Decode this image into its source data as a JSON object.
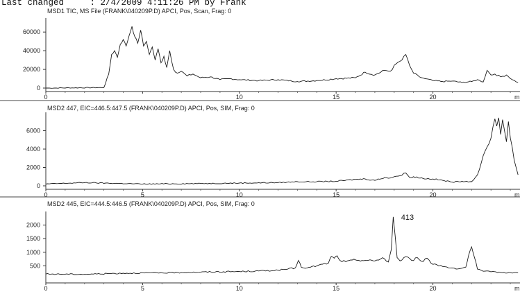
{
  "header": {
    "label": "Last changed",
    "value": ": 2/4/2009 4:11:26 PM by Frank"
  },
  "chart_data": [
    {
      "type": "line",
      "title": "MSD1 TIC, MS File (FRANK\\040209P.D)    APCI, Pos, Scan, Frag: 0",
      "xlim": [
        0,
        24.5
      ],
      "ylim": [
        0,
        75000
      ],
      "x_ticks": [
        0,
        5,
        10,
        15,
        20
      ],
      "x_tick_labels": [
        "0",
        "",
        "10",
        "15",
        "20"
      ],
      "y_ticks": [
        0,
        20000,
        40000,
        60000
      ],
      "x_unit_fragment": "m",
      "grid": false,
      "series": [
        {
          "x": [
            0,
            3.0,
            3.25,
            3.4,
            3.55,
            3.7,
            3.85,
            4.0,
            4.15,
            4.3,
            4.45,
            4.6,
            4.75,
            4.9,
            5.05,
            5.2,
            5.35,
            5.5,
            5.65,
            5.8,
            5.95,
            6.1,
            6.25,
            6.4,
            6.6,
            6.8,
            7.0,
            7.3,
            7.6,
            8.0,
            8.5,
            9.0,
            9.5,
            10.0,
            11.0,
            12.0,
            13.0,
            14.0,
            15.0,
            16.0,
            16.5,
            17.0,
            17.5,
            17.8,
            18.1,
            18.4,
            18.6,
            18.8,
            19.0,
            19.3,
            19.6,
            20.0,
            20.5,
            21.0,
            21.5,
            22.0,
            22.3,
            22.6,
            22.8,
            23.0,
            23.2,
            23.5,
            23.8,
            24.1,
            24.4
          ],
          "y": [
            0,
            500,
            15000,
            36000,
            40000,
            33000,
            47000,
            52000,
            45000,
            56000,
            66000,
            55000,
            48000,
            62000,
            45000,
            50000,
            36000,
            44000,
            30000,
            42000,
            27000,
            34000,
            22000,
            40000,
            20000,
            16000,
            18000,
            13000,
            15000,
            11000,
            12000,
            9000,
            10000,
            9000,
            8000,
            9000,
            7000,
            8000,
            10000,
            11000,
            17000,
            14000,
            19000,
            18000,
            26000,
            30000,
            36000,
            24000,
            16000,
            12000,
            10000,
            8000,
            7000,
            7500,
            6000,
            7000,
            9000,
            6500,
            19000,
            14000,
            15000,
            12000,
            14000,
            9000,
            6000
          ]
        }
      ]
    },
    {
      "type": "line",
      "title": "MSD2 447, EIC=446.5:447.5 (FRANK\\040209P.D)    APCI, Pos, SIM, Frag: 0",
      "xlim": [
        0,
        24.5
      ],
      "ylim": [
        0,
        8000
      ],
      "x_ticks": [
        0,
        5,
        10,
        15,
        20
      ],
      "x_tick_labels": [
        "0",
        "5",
        "10",
        "15",
        "20"
      ],
      "y_ticks": [
        0,
        2000,
        4000,
        6000
      ],
      "x_unit_fragment": "m",
      "grid": false,
      "series": [
        {
          "x": [
            0,
            2.0,
            5.0,
            8.0,
            10.0,
            12.0,
            13.0,
            14.0,
            15.0,
            16.0,
            16.5,
            17.0,
            17.5,
            17.8,
            18.0,
            18.3,
            18.6,
            18.8,
            19.0,
            19.5,
            20.0,
            20.5,
            21.0,
            21.5,
            22.0,
            22.3,
            22.5,
            22.7,
            22.9,
            23.0,
            23.1,
            23.2,
            23.3,
            23.4,
            23.5,
            23.6,
            23.7,
            23.8,
            23.9,
            24.0,
            24.1,
            24.2,
            24.3,
            24.4
          ],
          "y": [
            200,
            350,
            200,
            250,
            300,
            350,
            450,
            450,
            500,
            700,
            750,
            600,
            900,
            850,
            1000,
            1100,
            1400,
            900,
            1000,
            800,
            750,
            600,
            400,
            500,
            450,
            1200,
            2500,
            3800,
            4600,
            5200,
            6400,
            7300,
            6500,
            7400,
            5600,
            7200,
            6000,
            4800,
            7000,
            5200,
            4200,
            2800,
            2000,
            1200
          ]
        }
      ]
    },
    {
      "type": "line",
      "title": "MSD2 445, EIC=444.5:446.5 (FRANK\\040209P.D)    APCI, Pos, SIM, Frag: 0",
      "xlim": [
        0,
        24.5
      ],
      "ylim": [
        0,
        2500
      ],
      "x_ticks": [
        0,
        5,
        10,
        15,
        20
      ],
      "x_tick_labels": [
        "0",
        "5",
        "10",
        "15",
        "20"
      ],
      "y_ticks": [
        500,
        1000,
        1500,
        2000
      ],
      "x_unit_fragment": "m",
      "grid": false,
      "annotations": [
        {
          "x": 18.0,
          "y": 2300,
          "text": "413"
        }
      ],
      "series": [
        {
          "x": [
            0,
            2.0,
            4.0,
            6.0,
            8.0,
            10.0,
            11.0,
            12.0,
            12.5,
            12.9,
            13.05,
            13.2,
            13.5,
            14.0,
            14.3,
            14.6,
            14.75,
            14.9,
            15.05,
            15.2,
            15.5,
            16.0,
            16.5,
            17.0,
            17.4,
            17.7,
            17.85,
            17.95,
            18.05,
            18.15,
            18.3,
            18.6,
            18.9,
            19.2,
            19.5,
            19.7,
            19.9,
            20.2,
            20.6,
            21.0,
            21.4,
            21.7,
            21.85,
            22.0,
            22.15,
            22.3,
            22.6,
            23.0,
            23.5,
            24.0,
            24.4
          ],
          "y": [
            200,
            190,
            230,
            240,
            270,
            290,
            310,
            340,
            380,
            430,
            700,
            450,
            420,
            500,
            560,
            600,
            850,
            780,
            870,
            700,
            650,
            720,
            700,
            680,
            800,
            640,
            1100,
            2300,
            1600,
            800,
            680,
            840,
            700,
            800,
            660,
            780,
            600,
            540,
            470,
            420,
            400,
            450,
            900,
            1200,
            800,
            380,
            300,
            280,
            260,
            250,
            240
          ]
        }
      ]
    }
  ]
}
